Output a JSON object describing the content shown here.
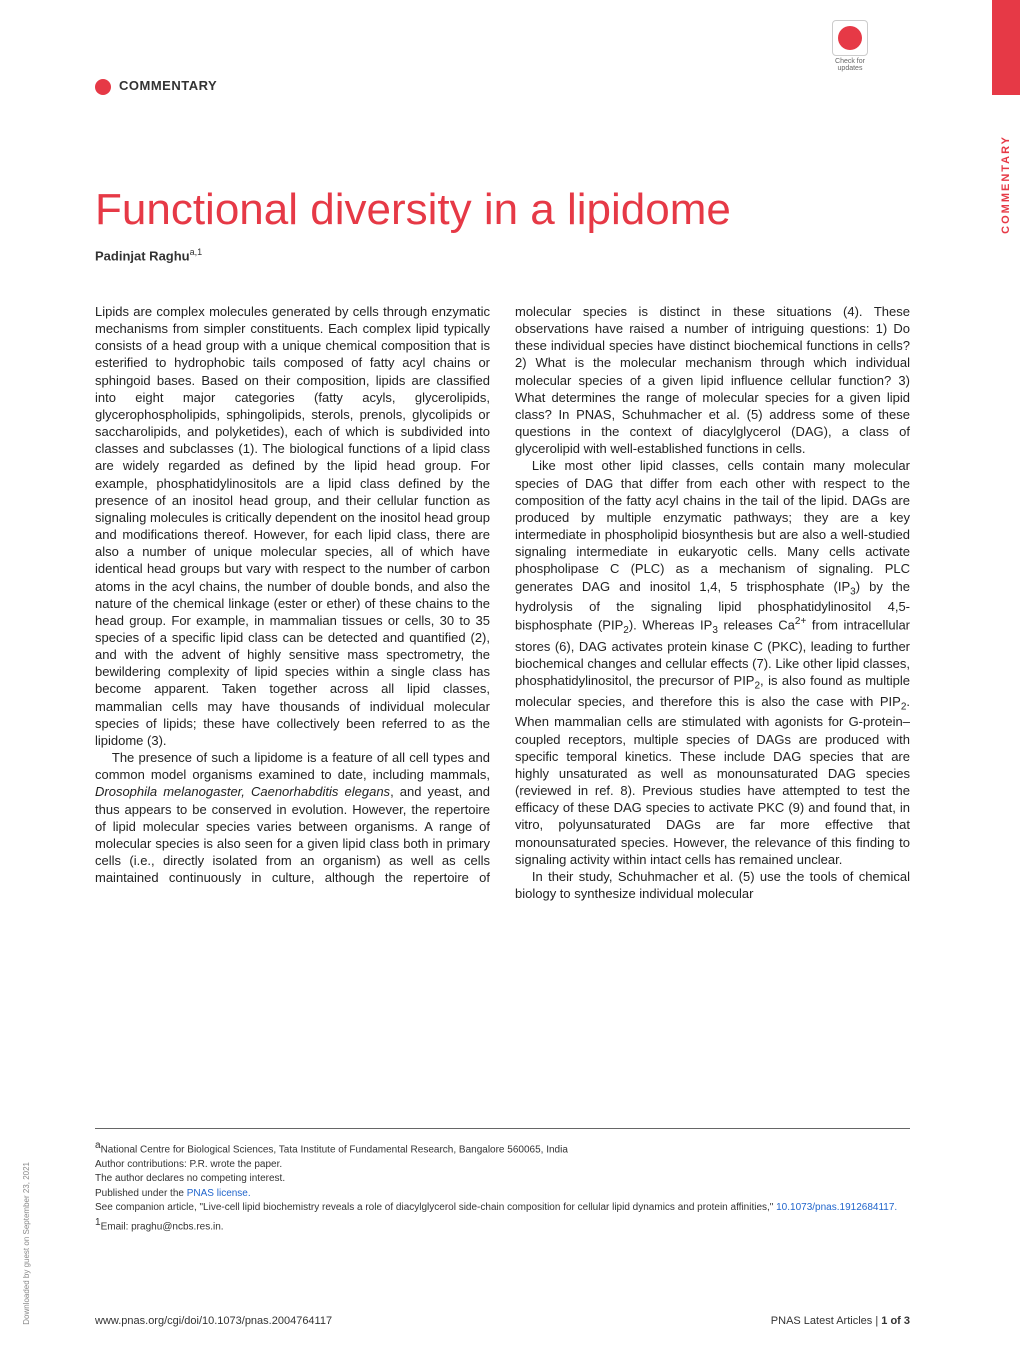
{
  "top_bar_color": "#e63946",
  "check_updates": {
    "text": "Check for updates"
  },
  "commentary_label": "COMMENTARY",
  "side_label": "COMMENTARY",
  "title": "Functional diversity in a lipidome",
  "author": {
    "name": "Padinjat Raghu",
    "affiliations": "a,1"
  },
  "paragraphs": {
    "p1": "Lipids are complex molecules generated by cells through enzymatic mechanisms from simpler constituents. Each complex lipid typically consists of a head group with a unique chemical composition that is esterified to hydrophobic tails composed of fatty acyl chains or sphingoid bases. Based on their composition, lipids are classified into eight major categories (fatty acyls, glycerolipids, glycerophospholipids, sphingolipids, sterols, prenols, glycolipids or saccharolipids, and polyketides), each of which is subdivided into classes and subclasses (1). The biological functions of a lipid class are widely regarded as defined by the lipid head group. For example, phosphatidylinositols are a lipid class defined by the presence of an inositol head group, and their cellular function as signaling molecules is critically dependent on the inositol head group and modifications thereof. However, for each lipid class, there are also a number of unique molecular species, all of which have identical head groups but vary with respect to the number of carbon atoms in the acyl chains, the number of double bonds, and also the nature of the chemical linkage (ester or ether) of these chains to the head group. For example, in mammalian tissues or cells, 30 to 35 species of a specific lipid class can be detected and quantified (2), and with the advent of highly sensitive mass spectrometry, the bewildering complexity of lipid species within a single class has become apparent. Taken together across all lipid classes, mammalian cells may have thousands of individual molecular species of lipids; these have collectively been referred to as the lipidome (3).",
    "p2_start": "The presence of such a lipidome is a feature of all cell types and common model organisms examined to date, including mammals, ",
    "p2_italic1": "Drosophila melanogaster, Caenorhabditis elegans",
    "p2_end": ", and yeast, and thus appears to be conserved in evolution. However, the repertoire of lipid molecular species varies between organisms. A range of molecular species is also seen for a given lipid class both in primary cells (i.e., directly isolated from an organism) as well as cells maintained continuously in culture, although the repertoire of molecular species is distinct in these situations (4). These observations have raised a number of intriguing questions: 1) Do these individual species have distinct biochemical functions in cells? 2) What is the molecular mechanism through which individual molecular species of a given lipid influence cellular function? 3) What determines the range of molecular species for a given lipid class? In PNAS, Schuhmacher et al. (5) address some of these questions in the context of diacylglycerol (DAG), a class of glycerolipid with well-established functions in cells.",
    "p3_a": "Like most other lipid classes, cells contain many molecular species of DAG that differ from each other with respect to the composition of the fatty acyl chains in the tail of the lipid. DAGs are produced by multiple enzymatic pathways; they are a key intermediate in phospholipid biosynthesis but are also a well-studied signaling intermediate in eukaryotic cells. Many cells activate phospholipase C (PLC) as a mechanism of signaling. PLC generates DAG and inositol 1,4, 5 trisphosphate (IP",
    "p3_b": ") by the hydrolysis of the signaling lipid phosphatidylinositol 4,5-bisphosphate (PIP",
    "p3_c": "). Whereas IP",
    "p3_d": " releases Ca",
    "p3_e": " from intracellular stores (6), DAG activates protein kinase C (PKC), leading to further biochemical changes and cellular effects (7). Like other lipid classes, phosphatidylinositol, the precursor of PIP",
    "p3_f": ", is also found as multiple molecular species, and therefore this is also the case with PIP",
    "p3_g": ". When mammalian cells are stimulated with agonists for G-protein–coupled receptors, multiple species of DAGs are produced with specific temporal kinetics. These include DAG species that are highly unsaturated as well as monounsaturated DAG species (reviewed in ref. 8). Previous studies have attempted to test the efficacy of these DAG species to activate PKC (9) and found that, in vitro, polyunsaturated DAGs are far more effective that monounsaturated species. However, the relevance of this finding to signaling activity within intact cells has remained unclear.",
    "p4": "In their study, Schuhmacher et al. (5) use the tools of chemical biology to synthesize individual molecular"
  },
  "footer": {
    "affiliation": "National Centre for Biological Sciences, Tata Institute of Fundamental Research, Bangalore 560065, India",
    "author_contributions": "Author contributions: P.R. wrote the paper.",
    "competing_interest": "The author declares no competing interest.",
    "published_under_prefix": "Published under the ",
    "published_under_link": "PNAS license.",
    "companion_prefix": "See companion article, \"Live-cell lipid biochemistry reveals a role of diacylglycerol side-chain composition for cellular lipid dynamics and protein affinities,\" ",
    "companion_link": "10.1073/pnas.1912684117.",
    "email_prefix": "Email: praghu@ncbs.res.in."
  },
  "bottom": {
    "doi": "www.pnas.org/cgi/doi/10.1073/pnas.2004764117",
    "page_info_prefix": "PNAS Latest Articles | ",
    "page_info": "1 of 3"
  },
  "download_note": "Downloaded by guest on September 23, 2021"
}
